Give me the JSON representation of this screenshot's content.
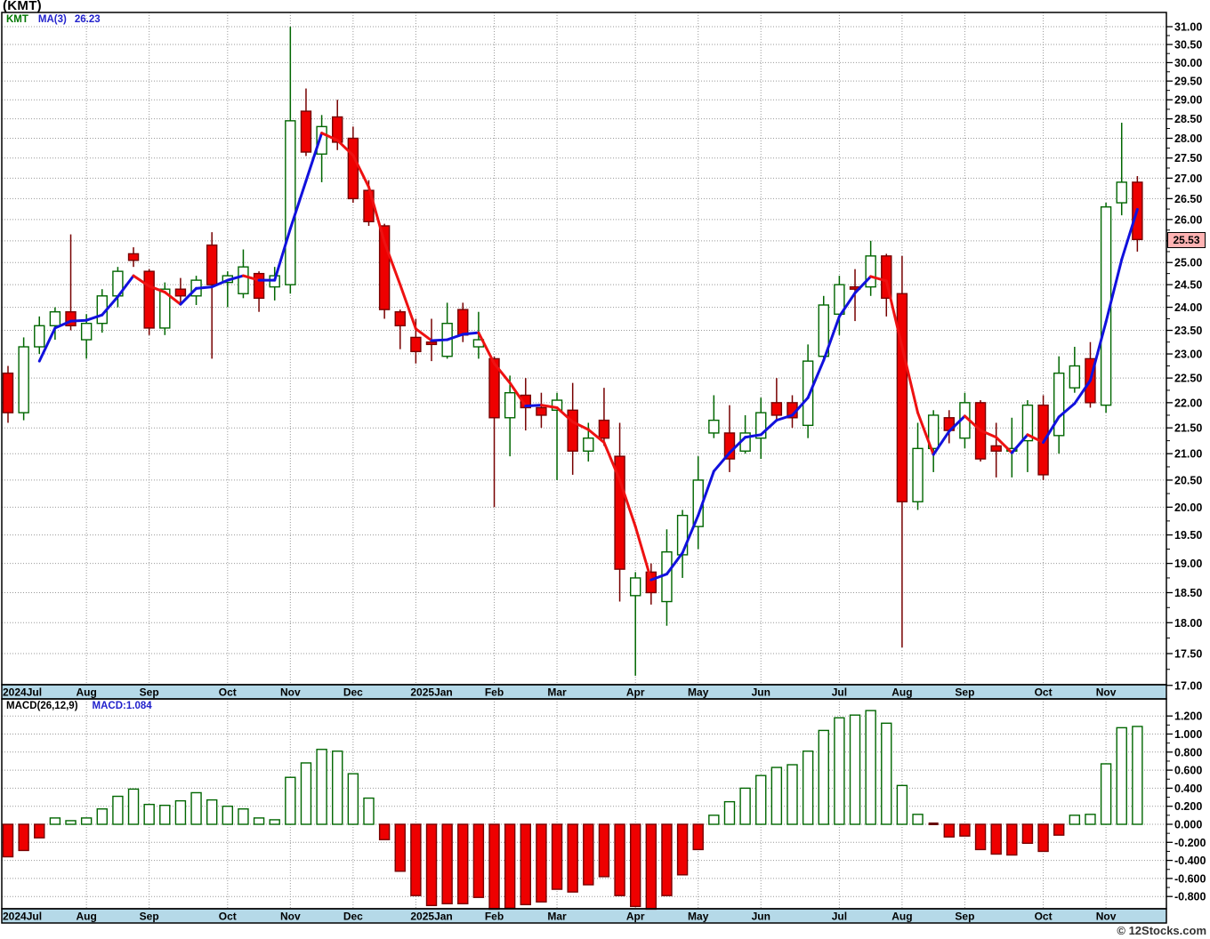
{
  "header": {
    "title": "(KMT)"
  },
  "main_chart": {
    "legend": {
      "symbol": "KMT",
      "ma_label": "MA(3)",
      "ma_value": "26.23"
    },
    "last_price_label": "25.53"
  },
  "macd_chart": {
    "legend": {
      "params": "MACD(26,12,9)",
      "value": "MACD:1.084"
    }
  },
  "footer": {
    "watermark": "© 12Stocks.com"
  },
  "colors": {
    "up_fill": "#ffffff",
    "up_border": "#006600",
    "down_fill": "#ee0000",
    "down_border": "#770000",
    "ma_up": "#1111dd",
    "ma_down": "#ee1111",
    "grid": "#999999",
    "border": "#000000",
    "strip_bg": "#b5d9e8",
    "badge_bg": "#ffb3b3",
    "axis_text": "#000000",
    "flat_bar": "#660000"
  },
  "chart_data": [
    {
      "type": "candlestick",
      "title": "KMT weekly candlesticks with MA(3)",
      "ylabel": "price",
      "ylim": [
        17.0,
        31.0
      ],
      "y_scale": "log",
      "y_ticks": [
        "31.00",
        "30.50",
        "30.00",
        "29.50",
        "29.00",
        "28.50",
        "28.00",
        "27.50",
        "27.00",
        "26.50",
        "26.00",
        "25.50",
        "25.00",
        "24.50",
        "24.00",
        "23.50",
        "23.00",
        "22.50",
        "22.00",
        "21.50",
        "21.00",
        "20.50",
        "20.00",
        "19.50",
        "19.00",
        "18.50",
        "18.00",
        "17.50",
        "17.00"
      ],
      "x_months": [
        [
          "2024Jul",
          0
        ],
        [
          "Aug",
          5
        ],
        [
          "Sep",
          9
        ],
        [
          "Oct",
          14
        ],
        [
          "Nov",
          18
        ],
        [
          "Dec",
          22
        ],
        [
          "2025Jan",
          26
        ],
        [
          "Feb",
          31
        ],
        [
          "Mar",
          35
        ],
        [
          "Apr",
          40
        ],
        [
          "May",
          44
        ],
        [
          "Jun",
          48
        ],
        [
          "Jul",
          53
        ],
        [
          "Aug",
          57
        ],
        [
          "Sep",
          61
        ],
        [
          "Oct",
          66
        ],
        [
          "Nov",
          70
        ]
      ],
      "series_note": "candles are [open,high,low,close]; MA(3) = 3-week simple moving average of close, blue rising / red falling",
      "last_close": 25.53,
      "ma3_last": 26.23,
      "candles": [
        [
          22.6,
          22.75,
          21.6,
          21.8
        ],
        [
          21.8,
          23.35,
          21.65,
          23.15
        ],
        [
          23.15,
          23.8,
          23.0,
          23.6
        ],
        [
          23.6,
          24.0,
          23.3,
          23.9
        ],
        [
          23.9,
          25.65,
          23.5,
          23.6
        ],
        [
          23.3,
          23.85,
          22.9,
          23.65
        ],
        [
          23.65,
          24.4,
          23.45,
          24.25
        ],
        [
          24.25,
          24.9,
          24.0,
          24.8
        ],
        [
          25.2,
          25.35,
          24.9,
          25.05
        ],
        [
          24.8,
          24.85,
          23.4,
          23.55
        ],
        [
          23.55,
          24.55,
          23.4,
          24.4
        ],
        [
          24.4,
          24.65,
          24.05,
          24.25
        ],
        [
          24.25,
          24.7,
          24.05,
          24.6
        ],
        [
          25.4,
          25.7,
          22.9,
          24.5
        ],
        [
          24.55,
          24.8,
          24.0,
          24.7
        ],
        [
          24.3,
          25.3,
          24.2,
          24.9
        ],
        [
          24.75,
          24.8,
          23.9,
          24.2
        ],
        [
          24.45,
          24.9,
          24.15,
          24.7
        ],
        [
          24.5,
          31.0,
          24.3,
          28.45
        ],
        [
          28.7,
          29.3,
          27.55,
          27.65
        ],
        [
          27.6,
          28.6,
          26.9,
          28.3
        ],
        [
          28.55,
          29.0,
          27.7,
          27.9
        ],
        [
          28.0,
          28.3,
          26.4,
          26.5
        ],
        [
          26.7,
          26.95,
          25.85,
          25.95
        ],
        [
          25.85,
          25.9,
          23.75,
          23.95
        ],
        [
          23.9,
          23.95,
          23.1,
          23.6
        ],
        [
          23.35,
          23.75,
          22.8,
          23.05
        ],
        [
          23.25,
          23.75,
          22.85,
          23.2
        ],
        [
          22.95,
          24.1,
          22.9,
          23.65
        ],
        [
          23.95,
          24.1,
          23.25,
          23.4
        ],
        [
          23.15,
          23.9,
          22.9,
          23.3
        ],
        [
          22.9,
          22.95,
          20.0,
          21.7
        ],
        [
          21.7,
          22.55,
          20.95,
          22.2
        ],
        [
          22.15,
          22.5,
          21.45,
          21.9
        ],
        [
          21.9,
          22.2,
          21.5,
          21.75
        ],
        [
          21.85,
          22.2,
          20.5,
          22.05
        ],
        [
          21.85,
          22.4,
          20.6,
          21.05
        ],
        [
          21.05,
          21.6,
          20.85,
          21.3
        ],
        [
          21.65,
          22.3,
          21.15,
          21.3
        ],
        [
          20.95,
          21.6,
          18.35,
          18.9
        ],
        [
          18.45,
          18.85,
          17.15,
          18.75
        ],
        [
          18.85,
          19.0,
          18.3,
          18.5
        ],
        [
          18.35,
          19.6,
          17.95,
          19.2
        ],
        [
          19.15,
          19.95,
          18.75,
          19.85
        ],
        [
          19.65,
          20.95,
          19.25,
          20.5
        ],
        [
          21.4,
          22.15,
          21.3,
          21.65
        ],
        [
          21.4,
          21.95,
          20.65,
          20.9
        ],
        [
          21.05,
          21.75,
          21.0,
          21.4
        ],
        [
          21.3,
          22.1,
          20.9,
          21.8
        ],
        [
          22.0,
          22.5,
          21.65,
          21.75
        ],
        [
          22.0,
          22.15,
          21.5,
          21.7
        ],
        [
          21.55,
          23.2,
          21.3,
          22.85
        ],
        [
          22.95,
          24.25,
          22.9,
          24.05
        ],
        [
          23.85,
          24.7,
          23.4,
          24.5
        ],
        [
          24.45,
          24.85,
          23.7,
          24.4
        ],
        [
          24.45,
          25.5,
          24.25,
          25.15
        ],
        [
          25.15,
          25.2,
          23.8,
          24.2
        ],
        [
          24.3,
          25.15,
          17.6,
          20.1
        ],
        [
          20.1,
          21.6,
          19.95,
          21.1
        ],
        [
          21.1,
          21.85,
          20.65,
          21.75
        ],
        [
          21.7,
          21.85,
          21.2,
          21.45
        ],
        [
          21.3,
          22.2,
          21.1,
          22.0
        ],
        [
          22.0,
          22.05,
          20.85,
          20.9
        ],
        [
          21.15,
          21.6,
          20.55,
          21.05
        ],
        [
          21.05,
          21.7,
          20.55,
          21.1
        ],
        [
          21.25,
          22.05,
          20.65,
          21.95
        ],
        [
          21.95,
          22.15,
          20.5,
          20.6
        ],
        [
          21.35,
          22.95,
          21.0,
          22.6
        ],
        [
          22.3,
          23.15,
          22.2,
          22.75
        ],
        [
          22.9,
          23.25,
          21.9,
          22.0
        ],
        [
          21.95,
          26.4,
          21.8,
          26.3
        ],
        [
          26.4,
          28.4,
          26.1,
          26.9
        ],
        [
          26.9,
          27.05,
          25.25,
          25.53
        ]
      ]
    },
    {
      "type": "bar",
      "title": "MACD(26,12,9) histogram",
      "ylim": [
        -0.8,
        1.2
      ],
      "y_ticks": [
        "1.200",
        "1.000",
        "0.800",
        "0.600",
        "0.400",
        "0.200",
        "0.000",
        "-0.200",
        "-0.400",
        "-0.600",
        "-0.800"
      ],
      "last_value": 1.084,
      "values": [
        -0.36,
        -0.29,
        -0.15,
        0.07,
        0.04,
        0.07,
        0.17,
        0.31,
        0.39,
        0.22,
        0.21,
        0.26,
        0.35,
        0.27,
        0.2,
        0.17,
        0.07,
        0.05,
        0.52,
        0.68,
        0.83,
        0.81,
        0.56,
        0.29,
        -0.17,
        -0.52,
        -0.79,
        -0.9,
        -0.88,
        -0.88,
        -0.81,
        -0.94,
        -0.93,
        -0.89,
        -0.86,
        -0.72,
        -0.75,
        -0.67,
        -0.58,
        -0.79,
        -0.91,
        -0.94,
        -0.79,
        -0.56,
        -0.28,
        0.1,
        0.25,
        0.4,
        0.54,
        0.63,
        0.66,
        0.81,
        1.04,
        1.18,
        1.21,
        1.26,
        1.12,
        0.43,
        0.11,
        -0.02,
        -0.14,
        -0.13,
        -0.28,
        -0.33,
        -0.34,
        -0.21,
        -0.3,
        -0.12,
        0.1,
        0.11,
        0.67,
        1.07,
        1.084
      ]
    }
  ]
}
